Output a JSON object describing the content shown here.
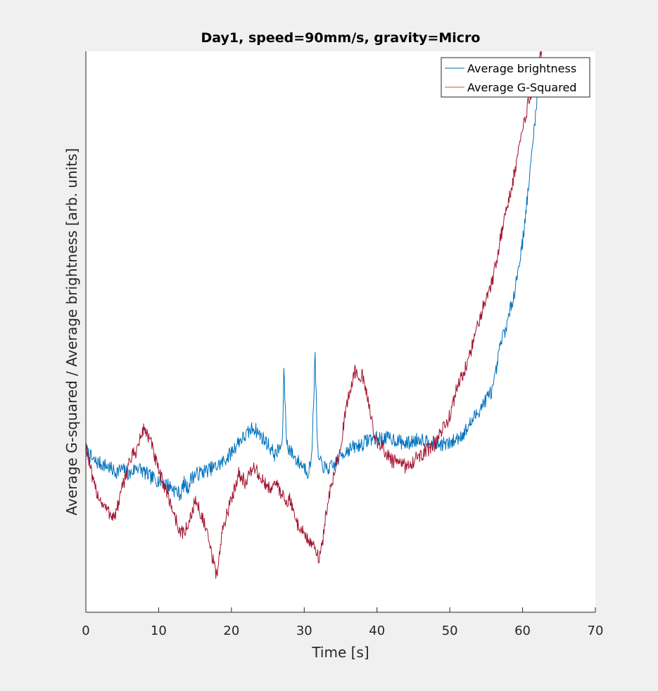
{
  "chart_data": {
    "type": "line",
    "title": "Day1, speed=90mm/s, gravity=Micro",
    "xlabel": "Time [s]",
    "ylabel": "Average G-squared / Average brightness [arb. units]",
    "xlim": [
      0,
      70
    ],
    "ylim": [
      0,
      1
    ],
    "xticks": [
      "0",
      "10",
      "20",
      "30",
      "40",
      "50",
      "60",
      "70"
    ],
    "yticks_visible": false,
    "grid": false,
    "legend_location": "top-right",
    "series": [
      {
        "name": "Average brightness",
        "color": "#0072BD",
        "x": [
          0,
          1,
          2,
          3,
          4,
          5,
          6,
          7,
          8,
          9,
          10,
          11,
          12,
          13,
          13.5,
          14,
          14.5,
          15,
          16,
          17,
          18,
          19,
          20,
          21,
          22,
          23,
          24,
          25,
          26,
          26.5,
          27,
          27.2,
          27.6,
          28,
          29,
          30,
          30.5,
          31,
          31.5,
          31.8,
          32,
          33,
          34,
          35,
          36,
          37,
          38,
          39,
          40,
          42,
          44,
          46,
          48,
          50,
          52,
          53,
          54,
          55,
          56,
          56.5,
          57,
          58,
          59,
          60,
          61,
          62,
          62.6
        ],
        "y": [
          0.29,
          0.27,
          0.265,
          0.26,
          0.25,
          0.255,
          0.245,
          0.26,
          0.25,
          0.24,
          0.235,
          0.23,
          0.22,
          0.21,
          0.23,
          0.22,
          0.24,
          0.245,
          0.25,
          0.255,
          0.26,
          0.27,
          0.285,
          0.305,
          0.315,
          0.33,
          0.315,
          0.3,
          0.28,
          0.29,
          0.3,
          0.43,
          0.3,
          0.29,
          0.27,
          0.26,
          0.25,
          0.27,
          0.46,
          0.3,
          0.27,
          0.255,
          0.26,
          0.28,
          0.29,
          0.295,
          0.3,
          0.31,
          0.31,
          0.31,
          0.3,
          0.31,
          0.3,
          0.3,
          0.32,
          0.34,
          0.36,
          0.38,
          0.4,
          0.44,
          0.48,
          0.52,
          0.58,
          0.66,
          0.78,
          0.92,
          1.0
        ]
      },
      {
        "name": "Average G-Squared",
        "color": "#A2142F",
        "x": [
          0,
          1,
          2,
          3,
          4,
          5,
          6,
          7,
          8,
          9,
          10,
          11,
          12,
          13,
          14,
          15,
          16,
          17,
          17.5,
          18,
          18.5,
          19,
          20,
          21,
          22,
          23,
          24,
          25,
          26,
          27,
          27.5,
          28,
          29,
          30,
          31,
          32,
          32.5,
          33,
          34,
          35,
          36,
          37,
          38,
          39,
          40,
          41,
          42,
          44,
          46,
          48,
          50,
          51,
          52,
          53,
          54,
          55,
          56,
          57,
          58,
          59,
          60,
          61,
          62,
          62.6
        ],
        "y": [
          0.3,
          0.23,
          0.2,
          0.18,
          0.17,
          0.22,
          0.27,
          0.29,
          0.33,
          0.3,
          0.25,
          0.22,
          0.18,
          0.14,
          0.15,
          0.2,
          0.17,
          0.12,
          0.09,
          0.065,
          0.12,
          0.16,
          0.2,
          0.25,
          0.23,
          0.26,
          0.24,
          0.22,
          0.23,
          0.21,
          0.2,
          0.2,
          0.16,
          0.14,
          0.12,
          0.1,
          0.12,
          0.18,
          0.24,
          0.3,
          0.38,
          0.43,
          0.42,
          0.36,
          0.3,
          0.29,
          0.27,
          0.26,
          0.28,
          0.3,
          0.35,
          0.4,
          0.43,
          0.47,
          0.52,
          0.56,
          0.6,
          0.67,
          0.73,
          0.79,
          0.86,
          0.92,
          0.97,
          1.0
        ]
      }
    ]
  }
}
